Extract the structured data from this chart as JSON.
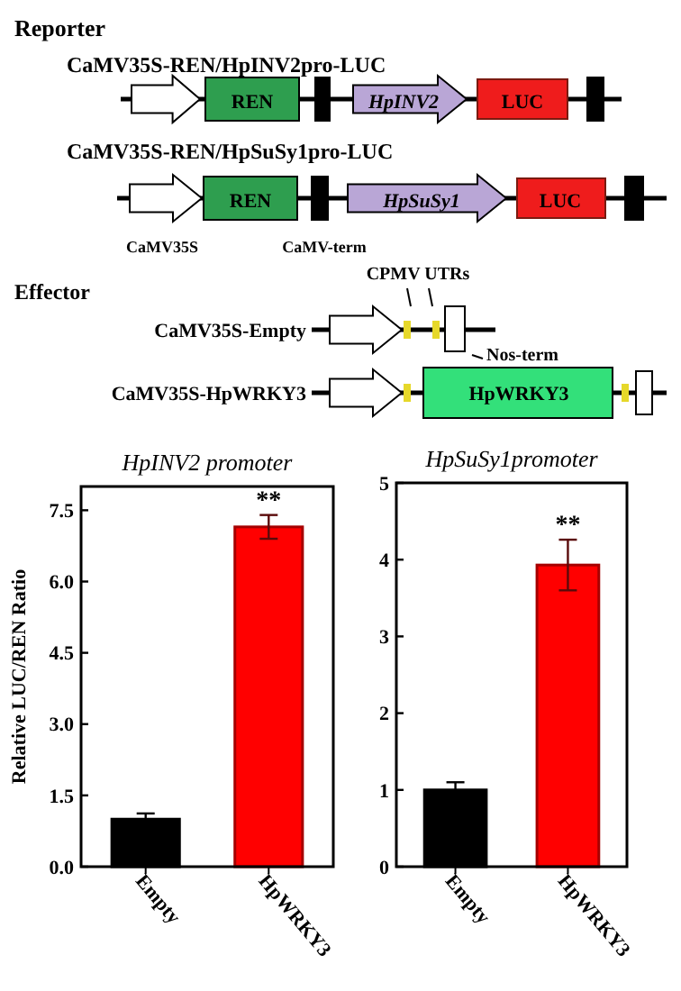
{
  "chart_data": [
    {
      "type": "other",
      "annotations": [
        "Reporter",
        "CaMV35S-REN/HpINV2pro-LUC",
        "REN",
        "HpINV2",
        "LUC",
        "CaMV35S-REN/HpSuSy1pro-LUC",
        "REN",
        "HpSuSy1",
        "LUC",
        "CaMV35S",
        "CaMV-term",
        "Effector",
        "CPMV UTRs",
        "CaMV35S-Empty",
        "Nos-term",
        "CaMV35S-HpWRKY3",
        "HpWRKY3"
      ]
    },
    {
      "type": "bar",
      "title": "HpINV2 promoter",
      "ylabel": "Relative LUC/REN Ratio",
      "categories": [
        "Empty",
        "HpWRKY3"
      ],
      "values": [
        1.0,
        7.15
      ],
      "colors": [
        "#000000",
        "#ff0000"
      ],
      "errors": [
        0.12,
        0.25
      ],
      "ylim": [
        0,
        8
      ],
      "yticks": [
        {
          "value": 0,
          "label": "0.0"
        },
        {
          "value": 1.5,
          "label": "1.5"
        },
        {
          "value": 3,
          "label": "3.0"
        },
        {
          "value": 4.5,
          "label": "4.5"
        },
        {
          "value": 6,
          "label": "6.0"
        },
        {
          "value": 7.5,
          "label": "7.5"
        }
      ],
      "annotations": [
        {
          "text": "**",
          "x": "HpWRKY3",
          "y": 7.4
        }
      ]
    },
    {
      "type": "bar",
      "title": "HpSuSy1promoter",
      "categories": [
        "Empty",
        "HpWRKY3"
      ],
      "values": [
        1.0,
        3.93
      ],
      "colors": [
        "#000000",
        "#ff0000"
      ],
      "errors": [
        0.1,
        0.33
      ],
      "ylim": [
        0,
        5
      ],
      "yticks": [
        0,
        1,
        2,
        3,
        4,
        5
      ],
      "annotations": [
        {
          "text": "**",
          "x": "HpWRKY3",
          "y": 4.26
        }
      ]
    }
  ]
}
